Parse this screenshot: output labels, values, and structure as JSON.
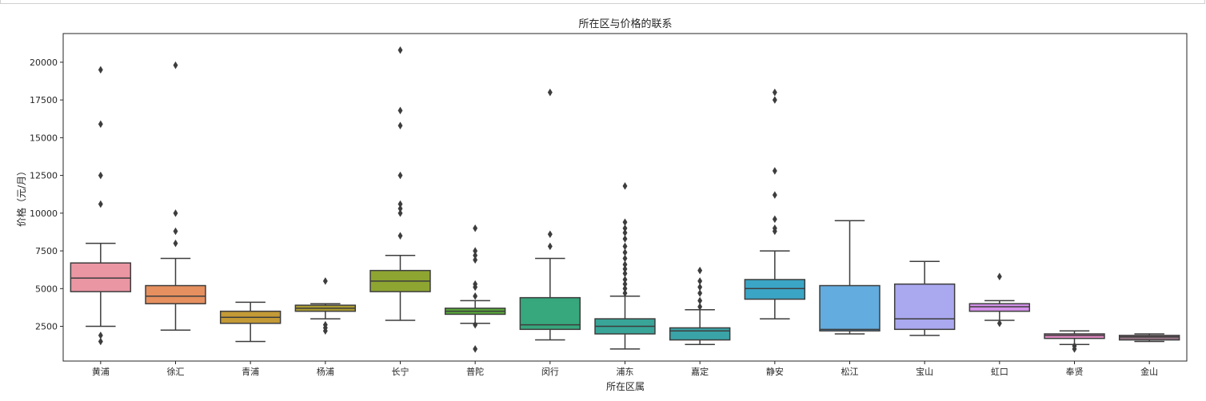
{
  "chart_data": {
    "type": "box",
    "title": "所在区与价格的联系",
    "xlabel": "所在区属",
    "ylabel": "价格（元/月）",
    "ylim": [
      200,
      21900
    ],
    "yticks": [
      2500,
      5000,
      7500,
      10000,
      12500,
      15000,
      17500,
      20000
    ],
    "grid": false,
    "categories": [
      "黄浦",
      "徐汇",
      "青浦",
      "杨浦",
      "长宁",
      "普陀",
      "闵行",
      "浦东",
      "嘉定",
      "静安",
      "松江",
      "宝山",
      "虹口",
      "奉贤",
      "金山"
    ],
    "colors": [
      "#ea96a3",
      "#e6905f",
      "#c39a35",
      "#ad9c32",
      "#8ea531",
      "#59a93b",
      "#37a77d",
      "#38a598",
      "#3aa3a8",
      "#3ba5c5",
      "#63acdf",
      "#aaa8ef",
      "#d491ea",
      "#e68ac6",
      "#937383"
    ],
    "boxes": [
      {
        "whislo": 2500,
        "q1": 4800,
        "med": 5700,
        "q3": 6700,
        "whishi": 8000,
        "fliers": [
          1500,
          1900,
          10600,
          12500,
          15900,
          19500
        ]
      },
      {
        "whislo": 2250,
        "q1": 4000,
        "med": 4500,
        "q3": 5200,
        "whishi": 7000,
        "fliers": [
          8000,
          8800,
          10000,
          19800
        ]
      },
      {
        "whislo": 1500,
        "q1": 2700,
        "med": 3100,
        "q3": 3500,
        "whishi": 4100,
        "fliers": []
      },
      {
        "whislo": 3000,
        "q1": 3500,
        "med": 3700,
        "q3": 3900,
        "whishi": 4000,
        "fliers": [
          2200,
          2400,
          2600,
          5500
        ]
      },
      {
        "whislo": 2900,
        "q1": 4800,
        "med": 5500,
        "q3": 6200,
        "whishi": 7200,
        "fliers": [
          8500,
          10000,
          10300,
          10600,
          12500,
          15800,
          16800,
          20800
        ]
      },
      {
        "whislo": 2700,
        "q1": 3300,
        "med": 3500,
        "q3": 3700,
        "whishi": 4200,
        "fliers": [
          1000,
          2600,
          4500,
          5100,
          5300,
          6900,
          7200,
          7500,
          9000
        ]
      },
      {
        "whislo": 1600,
        "q1": 2300,
        "med": 2600,
        "q3": 4400,
        "whishi": 7000,
        "fliers": [
          7800,
          8600,
          18000
        ]
      },
      {
        "whislo": 1000,
        "q1": 2000,
        "med": 2500,
        "q3": 3000,
        "whishi": 4500,
        "fliers": [
          4700,
          5000,
          5300,
          5600,
          6000,
          6300,
          6600,
          7000,
          7400,
          7800,
          8300,
          8700,
          9000,
          9400,
          11800
        ]
      },
      {
        "whislo": 1300,
        "q1": 1600,
        "med": 2200,
        "q3": 2400,
        "whishi": 3600,
        "fliers": [
          3800,
          4200,
          4700,
          5100,
          5500,
          6200
        ]
      },
      {
        "whislo": 3000,
        "q1": 4300,
        "med": 5000,
        "q3": 5600,
        "whishi": 7500,
        "fliers": [
          8800,
          9000,
          9600,
          11200,
          12800,
          17500,
          18000
        ]
      },
      {
        "whislo": 2000,
        "q1": 2200,
        "med": 2300,
        "q3": 5200,
        "whishi": 9500,
        "fliers": []
      },
      {
        "whislo": 1900,
        "q1": 2300,
        "med": 3000,
        "q3": 5300,
        "whishi": 6800,
        "fliers": []
      },
      {
        "whislo": 2900,
        "q1": 3500,
        "med": 3800,
        "q3": 4000,
        "whishi": 4200,
        "fliers": [
          2700,
          5800
        ]
      },
      {
        "whislo": 1300,
        "q1": 1700,
        "med": 1900,
        "q3": 2000,
        "whishi": 2200,
        "fliers": [
          1000,
          1200
        ]
      },
      {
        "whislo": 1500,
        "q1": 1600,
        "med": 1800,
        "q3": 1900,
        "whishi": 2000,
        "fliers": []
      }
    ]
  }
}
